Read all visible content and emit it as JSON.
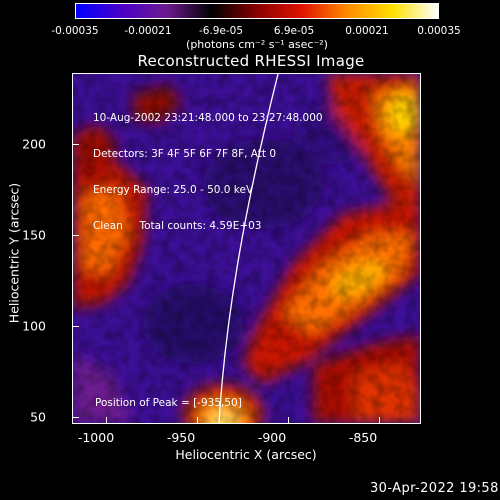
{
  "colorbar": {
    "ticks": [
      "-0.00035",
      "-0.00021",
      "-6.9e-05",
      "6.9e-05",
      "0.00021",
      "0.00035"
    ],
    "unit_label": "(photons cm⁻² s⁻¹ asec⁻²)",
    "colors": [
      "#0000ff",
      "#4b00c8",
      "#6d1a8f",
      "#000000",
      "#8a0000",
      "#e01400",
      "#ff8c00",
      "#ffe000",
      "#ffffff"
    ]
  },
  "plot": {
    "title": "Reconstructed RHESSI Image",
    "info_lines": [
      "10-Aug-2002 23:21:48.000 to 23:27:48.000",
      "Detectors: 3F 4F 5F 6F 7F 8F, Att 0",
      "Energy Range: 25.0 - 50.0 keV",
      "Clean     Total counts: 4.59E+03"
    ],
    "peak_label": "Position of Peak = [-935,50]",
    "x_axis": {
      "label": "Heliocentric X (arcsec)",
      "ticks": [
        "-1000",
        "-950",
        "-900",
        "-850"
      ]
    },
    "y_axis": {
      "label": "Heliocentric Y (arcsec)",
      "ticks": [
        "200",
        "150",
        "100",
        "50"
      ]
    }
  },
  "timestamp": "30-Apr-2022 19:58"
}
